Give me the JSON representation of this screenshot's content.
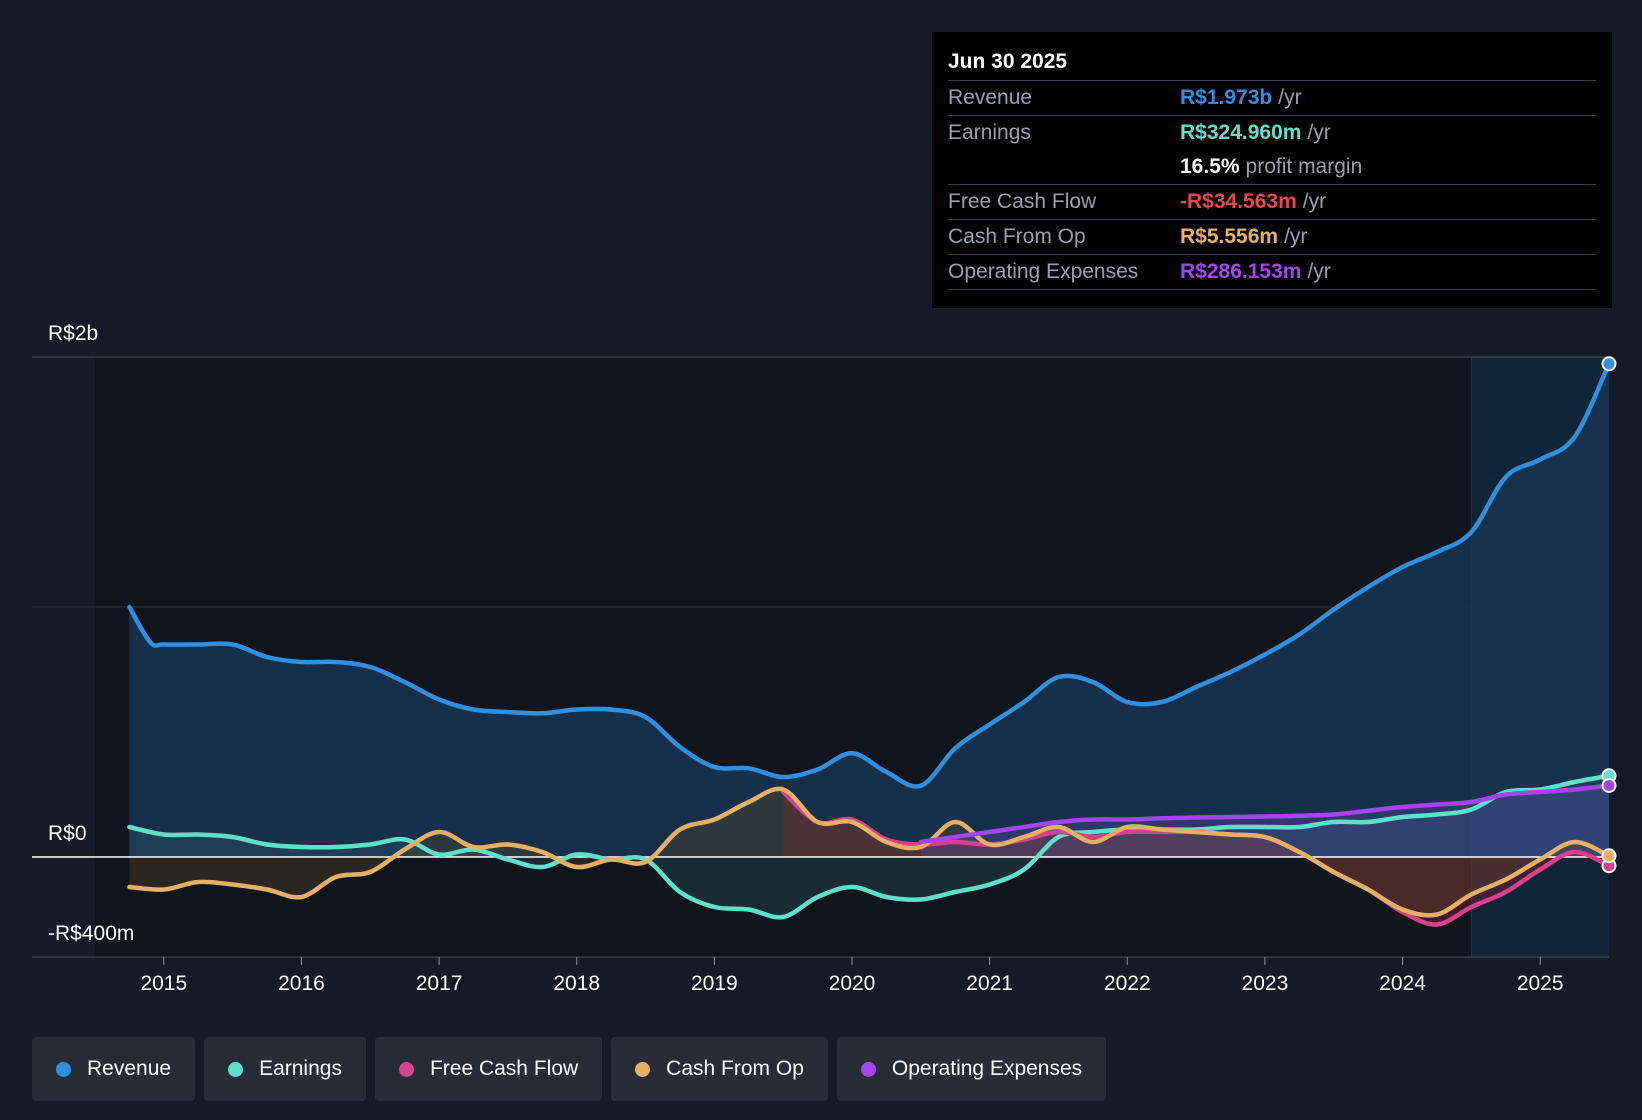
{
  "tooltip": {
    "date": "Jun 30 2025",
    "revenue_label": "Revenue",
    "revenue_value": "R$1.973b",
    "revenue_unit": "/yr",
    "earnings_label": "Earnings",
    "earnings_value": "R$324.960m",
    "earnings_unit": "/yr",
    "margin_value": "16.5%",
    "margin_label": "profit margin",
    "fcf_label": "Free Cash Flow",
    "fcf_value": "-R$34.563m",
    "fcf_unit": "/yr",
    "cfo_label": "Cash From Op",
    "cfo_value": "R$5.556m",
    "cfo_unit": "/yr",
    "opex_label": "Operating Expenses",
    "opex_value": "R$286.153m",
    "opex_unit": "/yr"
  },
  "legend": [
    {
      "label": "Revenue",
      "color": "#2f8fe0"
    },
    {
      "label": "Earnings",
      "color": "#5ee0cb"
    },
    {
      "label": "Free Cash Flow",
      "color": "#d9418a"
    },
    {
      "label": "Cash From Op",
      "color": "#e8b063"
    },
    {
      "label": "Operating Expenses",
      "color": "#a445f0"
    }
  ],
  "chart_data": {
    "type": "line",
    "title": "",
    "y_tick_labels": [
      "R$2b",
      "R$0",
      "-R$400m"
    ],
    "ylim": [
      -400,
      2000
    ],
    "y_unit": "R$ millions",
    "x_tick_labels": [
      "2015",
      "2016",
      "2017",
      "2018",
      "2019",
      "2020",
      "2021",
      "2022",
      "2023",
      "2024",
      "2025"
    ],
    "xlim": [
      2014.5,
      2025.5
    ],
    "forecast_region_start": 2024.5,
    "series": [
      {
        "name": "Revenue",
        "color": "#2f8fe0",
        "x": [
          2014.75,
          2014.9,
          2015.0,
          2015.25,
          2015.5,
          2015.75,
          2016.0,
          2016.25,
          2016.5,
          2016.75,
          2017.0,
          2017.25,
          2017.5,
          2017.75,
          2018.0,
          2018.25,
          2018.5,
          2018.75,
          2019.0,
          2019.25,
          2019.5,
          2019.75,
          2020.0,
          2020.25,
          2020.5,
          2020.75,
          2021.0,
          2021.25,
          2021.5,
          2021.75,
          2022.0,
          2022.25,
          2022.5,
          2022.75,
          2023.0,
          2023.25,
          2023.5,
          2023.75,
          2024.0,
          2024.25,
          2024.5,
          2024.75,
          2025.0,
          2025.25,
          2025.5
        ],
        "values": [
          1000,
          860,
          850,
          850,
          850,
          800,
          780,
          780,
          760,
          700,
          630,
          590,
          580,
          575,
          590,
          590,
          560,
          440,
          360,
          355,
          320,
          350,
          415,
          340,
          285,
          435,
          530,
          620,
          720,
          700,
          620,
          620,
          680,
          740,
          810,
          890,
          990,
          1080,
          1160,
          1220,
          1300,
          1520,
          1590,
          1680,
          1973
        ]
      },
      {
        "name": "Earnings",
        "color": "#5ee0cb",
        "x": [
          2014.75,
          2015.0,
          2015.25,
          2015.5,
          2015.75,
          2016.0,
          2016.25,
          2016.5,
          2016.75,
          2017.0,
          2017.25,
          2017.5,
          2017.75,
          2018.0,
          2018.25,
          2018.5,
          2018.75,
          2019.0,
          2019.25,
          2019.5,
          2019.75,
          2020.0,
          2020.25,
          2020.5,
          2020.75,
          2021.0,
          2021.25,
          2021.5,
          2021.75,
          2022.0,
          2022.25,
          2022.5,
          2022.75,
          2023.0,
          2023.25,
          2023.5,
          2023.75,
          2024.0,
          2024.25,
          2024.5,
          2024.75,
          2025.0,
          2025.25,
          2025.5
        ],
        "values": [
          120,
          90,
          90,
          80,
          50,
          40,
          40,
          50,
          70,
          10,
          30,
          -10,
          -40,
          10,
          -10,
          -10,
          -140,
          -200,
          -210,
          -240,
          -160,
          -120,
          -160,
          -170,
          -140,
          -110,
          -50,
          80,
          100,
          110,
          110,
          110,
          120,
          120,
          120,
          140,
          140,
          160,
          170,
          190,
          260,
          270,
          300,
          325
        ]
      },
      {
        "name": "Free Cash Flow",
        "color": "#d9418a",
        "x": [
          2019.5,
          2019.75,
          2020.0,
          2020.25,
          2020.5,
          2020.75,
          2021.0,
          2021.25,
          2021.5,
          2021.75,
          2022.0,
          2022.25,
          2022.5,
          2022.75,
          2023.0,
          2023.25,
          2023.5,
          2023.75,
          2024.0,
          2024.25,
          2024.5,
          2024.75,
          2025.0,
          2025.25,
          2025.5
        ],
        "values": [
          260,
          140,
          150,
          70,
          50,
          60,
          50,
          70,
          100,
          80,
          100,
          100,
          100,
          90,
          80,
          20,
          -60,
          -130,
          -220,
          -270,
          -200,
          -140,
          -50,
          20,
          -35
        ]
      },
      {
        "name": "Cash From Op",
        "color": "#e8b063",
        "x": [
          2014.75,
          2015.0,
          2015.25,
          2015.5,
          2015.75,
          2016.0,
          2016.25,
          2016.5,
          2016.75,
          2017.0,
          2017.25,
          2017.5,
          2017.75,
          2018.0,
          2018.25,
          2018.5,
          2018.75,
          2019.0,
          2019.25,
          2019.5,
          2019.75,
          2020.0,
          2020.25,
          2020.5,
          2020.75,
          2021.0,
          2021.25,
          2021.5,
          2021.75,
          2022.0,
          2022.25,
          2022.5,
          2022.75,
          2023.0,
          2023.25,
          2023.5,
          2023.75,
          2024.0,
          2024.25,
          2024.5,
          2024.75,
          2025.0,
          2025.25,
          2025.5
        ],
        "values": [
          -120,
          -130,
          -100,
          -110,
          -130,
          -160,
          -80,
          -60,
          30,
          100,
          40,
          50,
          20,
          -40,
          -10,
          -20,
          110,
          150,
          220,
          270,
          140,
          140,
          60,
          40,
          140,
          50,
          80,
          120,
          60,
          120,
          110,
          100,
          90,
          80,
          20,
          -60,
          -130,
          -210,
          -230,
          -150,
          -90,
          -10,
          60,
          5
        ]
      },
      {
        "name": "Operating Expenses",
        "color": "#a445f0",
        "x": [
          2020.5,
          2020.75,
          2021.0,
          2021.25,
          2021.5,
          2021.75,
          2022.0,
          2022.25,
          2022.5,
          2022.75,
          2023.0,
          2023.25,
          2023.5,
          2023.75,
          2024.0,
          2024.25,
          2024.5,
          2024.75,
          2025.0,
          2025.25,
          2025.5
        ],
        "values": [
          60,
          80,
          100,
          120,
          140,
          150,
          150,
          155,
          158,
          160,
          162,
          165,
          170,
          185,
          200,
          210,
          220,
          250,
          260,
          270,
          286
        ]
      }
    ]
  }
}
